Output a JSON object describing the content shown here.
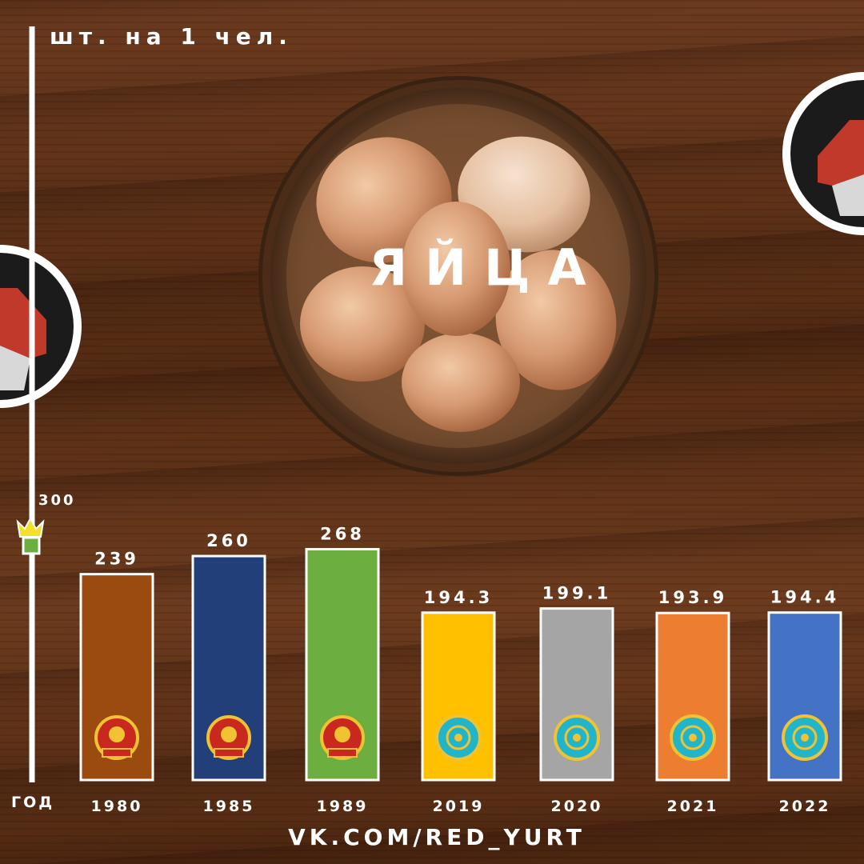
{
  "title": "ЯЙЦА",
  "footer": "VK.COM/RED_YURT",
  "chart_data": {
    "type": "bar",
    "ylabel": "шт. на 1 чел.",
    "xlabel": "ГОД",
    "y_ticks": [
      "300"
    ],
    "ylim": [
      0,
      300
    ],
    "categories": [
      "1980",
      "1985",
      "1989",
      "2019",
      "2020",
      "2021",
      "2022"
    ],
    "values": [
      239,
      260,
      268,
      194.3,
      199.1,
      193.9,
      194.4
    ],
    "value_labels": [
      "239",
      "260",
      "268",
      "194.3",
      "199.1",
      "193.9",
      "194.4"
    ],
    "bar_colors": [
      "#9b4a10",
      "#233f7a",
      "#6cae3f",
      "#ffc000",
      "#a5a5a5",
      "#ed7d31",
      "#4472c4"
    ],
    "emblems": [
      "kazakh-ssr-emblem",
      "kazakh-ssr-emblem",
      "kazakh-ssr-emblem",
      "kazakhstan-emblem",
      "kazakhstan-emblem",
      "kazakhstan-emblem",
      "kazakhstan-emblem"
    ],
    "grid": false,
    "legend": "none"
  },
  "icons": {
    "axis_marker": "crown-icon",
    "side_badges": "yurt-logo-icon"
  },
  "colors": {
    "ssr_emblem": "#c8281e",
    "kz_emblem": "#22b5c9",
    "emblem_gold": "#f1c232"
  }
}
